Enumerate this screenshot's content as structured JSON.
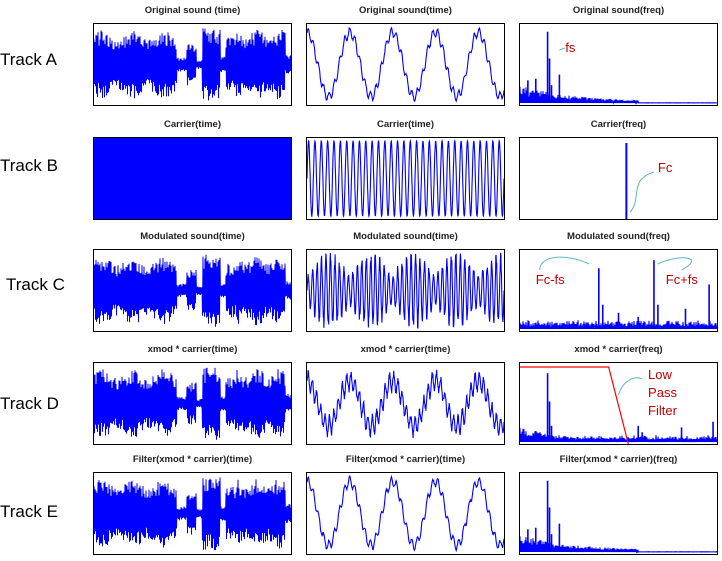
{
  "colors": {
    "signal": "#0000ff",
    "frame": "#000000",
    "annotation": "#c00000",
    "leader": "#5fb6c8",
    "filter_line": "#ff0000"
  },
  "tracks": [
    {
      "label": "Track A"
    },
    {
      "label": "Track B"
    },
    {
      "label": "Track C"
    },
    {
      "label": "Track D"
    },
    {
      "label": "Track E"
    }
  ],
  "chart_data": [
    {
      "type": "line",
      "row": 0,
      "col": 0,
      "title": "Original sound (time)",
      "signal": "speech_time"
    },
    {
      "type": "line",
      "row": 0,
      "col": 1,
      "title": "Original sound(time)",
      "signal": "speech_zoom"
    },
    {
      "type": "line",
      "row": 0,
      "col": 2,
      "title": "Original sound(freq)",
      "signal": "spectrum_low",
      "annotations": [
        {
          "text": "fs"
        }
      ]
    },
    {
      "type": "area",
      "row": 1,
      "col": 0,
      "title": "Carrier(time)",
      "signal": "carrier_full"
    },
    {
      "type": "line",
      "row": 1,
      "col": 1,
      "title": "Carrier(time)",
      "signal": "carrier_zoom"
    },
    {
      "type": "line",
      "row": 1,
      "col": 2,
      "title": "Carrier(freq)",
      "signal": "carrier_spectrum",
      "annotations": [
        {
          "text": "Fc"
        }
      ]
    },
    {
      "type": "line",
      "row": 2,
      "col": 0,
      "title": "Modulated sound(time)",
      "signal": "speech_time"
    },
    {
      "type": "line",
      "row": 2,
      "col": 1,
      "title": "Modulated sound(time)",
      "signal": "modulated_zoom"
    },
    {
      "type": "line",
      "row": 2,
      "col": 2,
      "title": "Modulated sound(freq)",
      "signal": "spectrum_modulated",
      "annotations": [
        {
          "text": "Fc-fs"
        },
        {
          "text": "Fc+fs"
        }
      ]
    },
    {
      "type": "line",
      "row": 3,
      "col": 0,
      "title": "xmod * carrier(time)",
      "signal": "speech_time"
    },
    {
      "type": "line",
      "row": 3,
      "col": 1,
      "title": "xmod * carrier(time)",
      "signal": "demod_zoom"
    },
    {
      "type": "line",
      "row": 3,
      "col": 2,
      "title": "xmod * carrier(freq)",
      "signal": "spectrum_demod",
      "annotations": [
        {
          "text": "Low"
        },
        {
          "text": "Pass"
        },
        {
          "text": "Filter"
        }
      ]
    },
    {
      "type": "line",
      "row": 4,
      "col": 0,
      "title": "Filter(xmod * carrier)(time)",
      "signal": "speech_time"
    },
    {
      "type": "line",
      "row": 4,
      "col": 1,
      "title": "Filter(xmod * carrier)(time)",
      "signal": "speech_zoom"
    },
    {
      "type": "line",
      "row": 4,
      "col": 2,
      "title": "Filter(xmod * carrier)(freq)",
      "signal": "spectrum_low"
    }
  ]
}
